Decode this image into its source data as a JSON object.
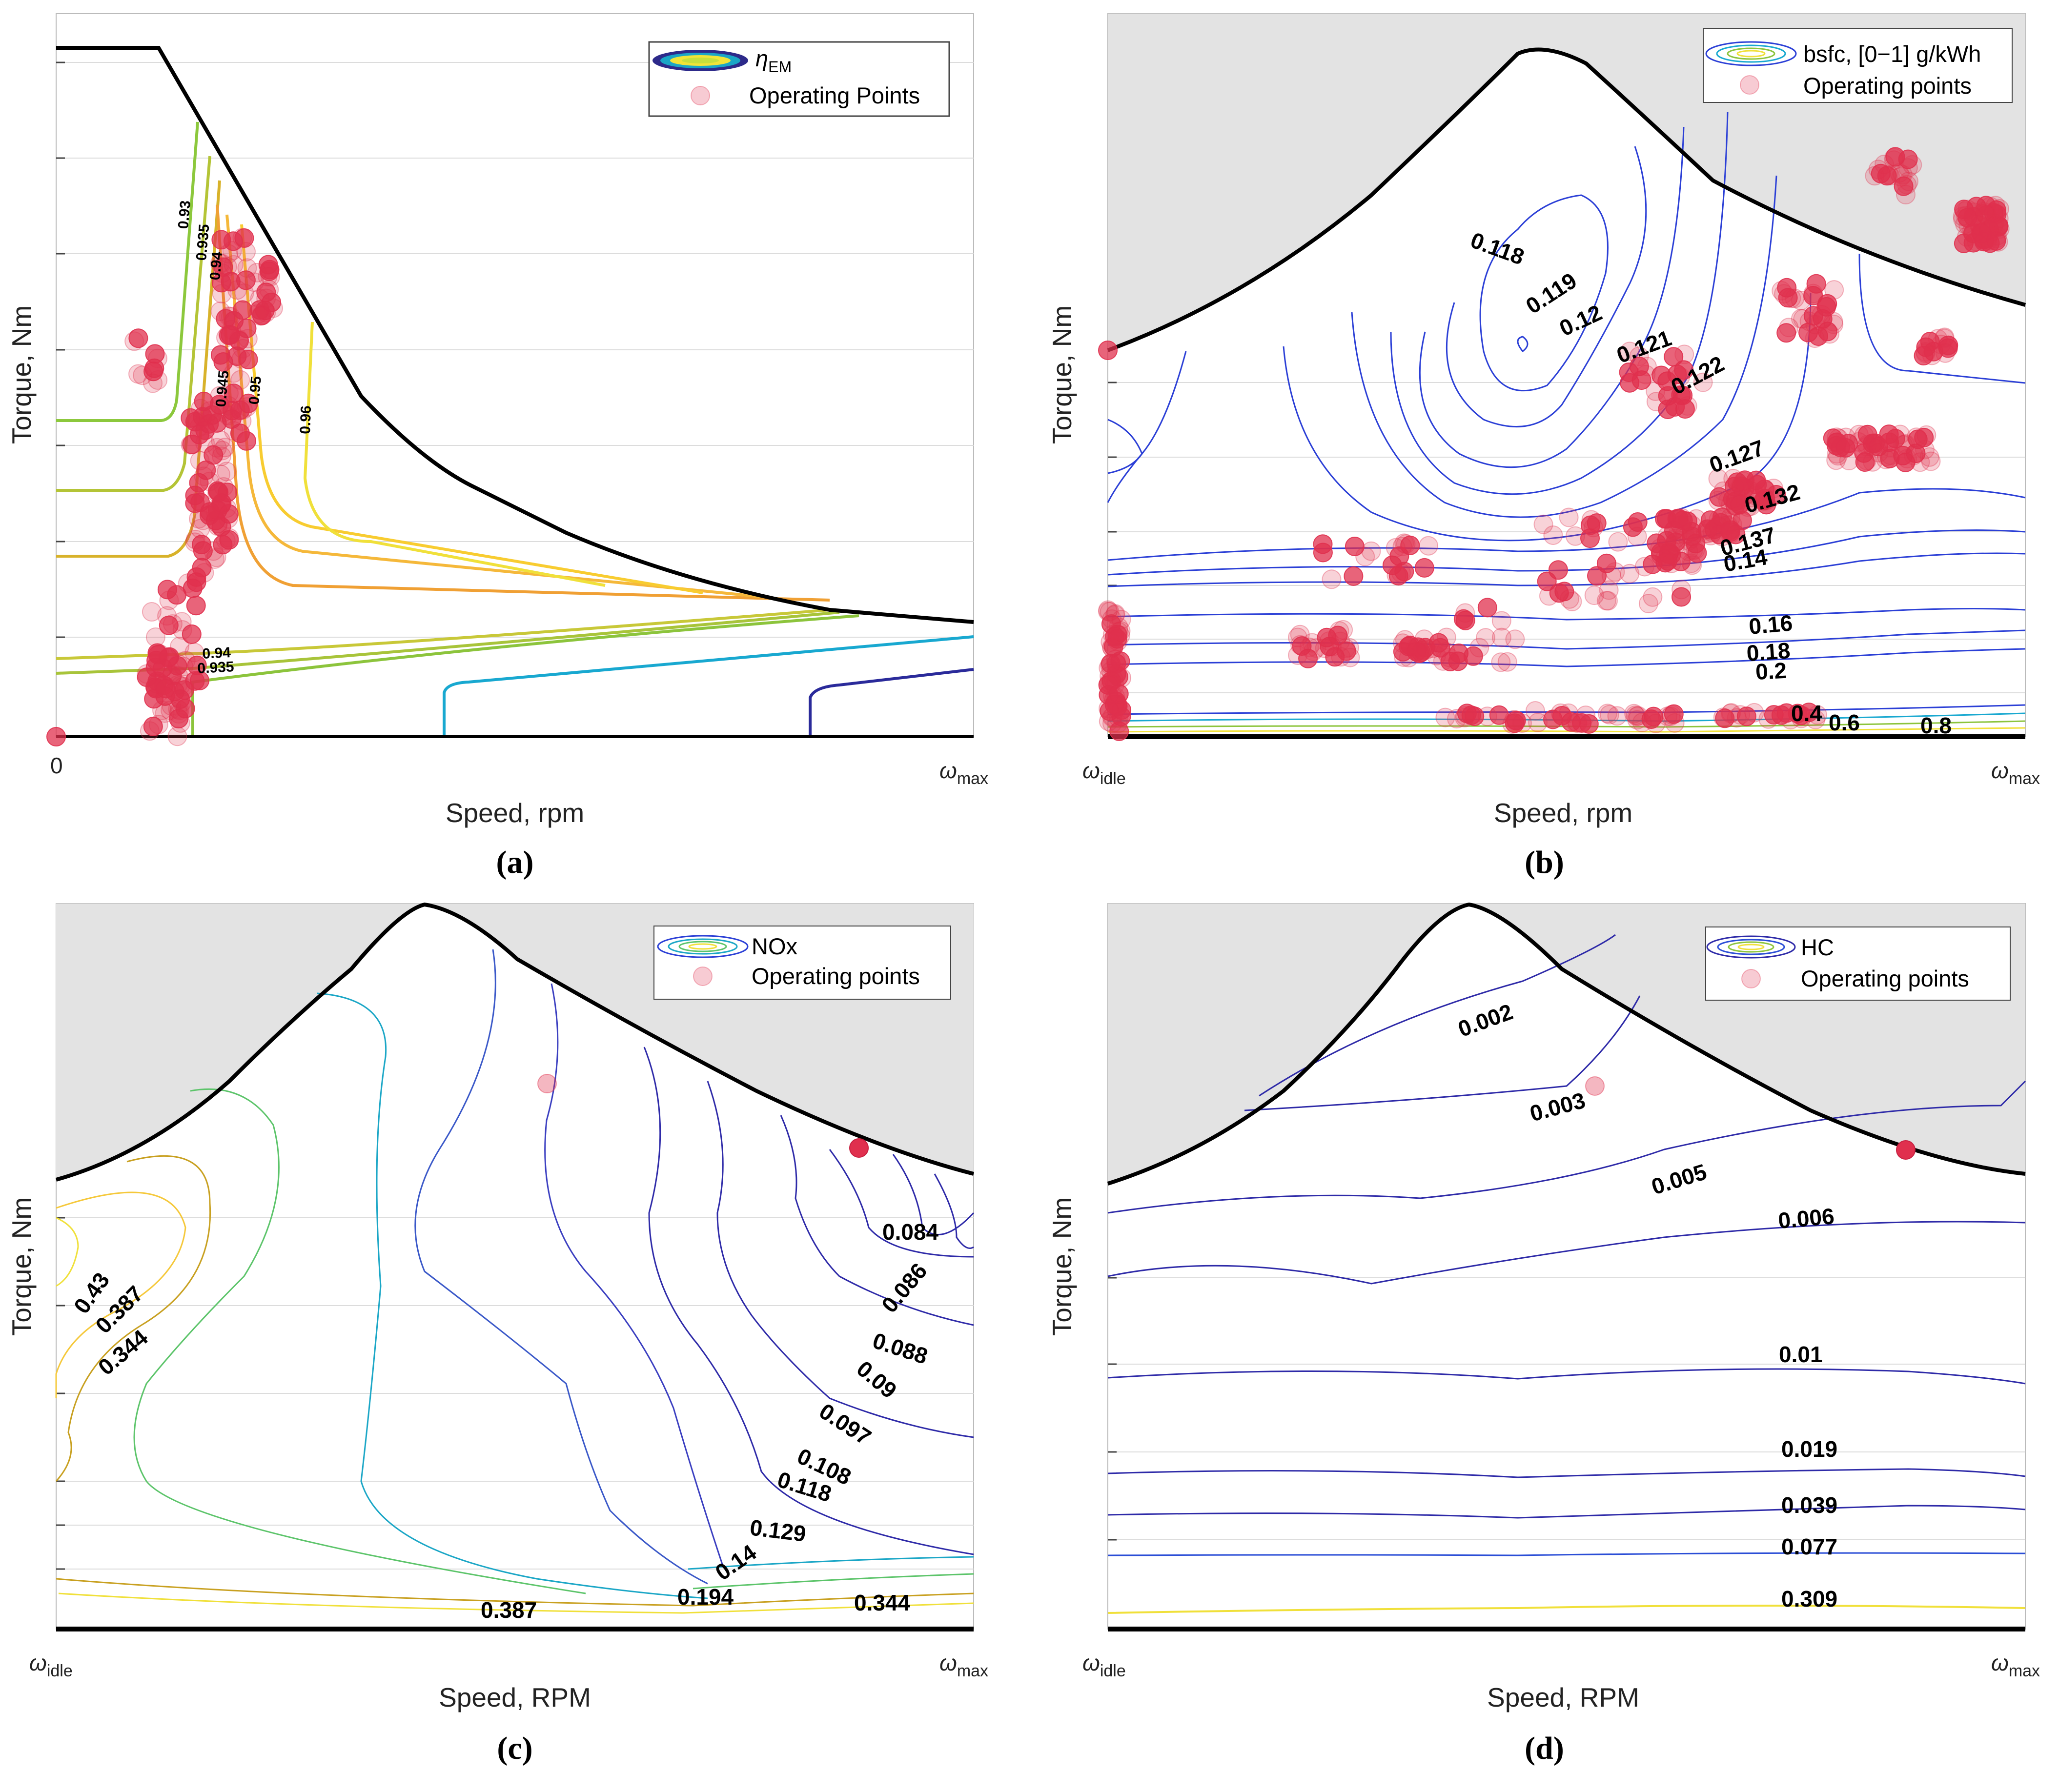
{
  "figure": {
    "captions": [
      "(a)",
      "(b)",
      "(c)",
      "(d)"
    ]
  },
  "colors": {
    "operating_point": "#e0304e",
    "infeasible_region": "#e3e3e3",
    "boundary": "#000000",
    "grid": "#dcdcdc"
  },
  "chart_data": [
    {
      "id": "a",
      "type": "contour",
      "caption": "(a)",
      "xlabel": "Speed, rpm",
      "ylabel": "Torque, Nm",
      "x_ticks": [
        {
          "label": "0",
          "sub": ""
        },
        {
          "label": "ω",
          "sub": "max"
        }
      ],
      "legend": [
        {
          "symbol": "contour",
          "label": "η",
          "sub": "EM"
        },
        {
          "symbol": "marker",
          "label": "Operating Points"
        }
      ],
      "legend_position": "top-right",
      "grid": true,
      "contour_labels": [
        "0.93",
        "0.935",
        "0.94",
        "0.945",
        "0.95",
        "0.96",
        "0.94",
        "0.935"
      ],
      "operating_points_note": "dense cluster at low speed, wide torque range"
    },
    {
      "id": "b",
      "type": "contour",
      "caption": "(b)",
      "xlabel": "Speed, rpm",
      "ylabel": "Torque, Nm",
      "x_ticks": [
        {
          "label": "ω",
          "sub": "idle"
        },
        {
          "label": "ω",
          "sub": "max"
        }
      ],
      "legend": [
        {
          "symbol": "contour",
          "label": "bsfc, [0−1] g/kWh"
        },
        {
          "symbol": "marker",
          "label": "Operating points"
        }
      ],
      "legend_position": "top-right",
      "grid": true,
      "contour_labels": [
        "0.118",
        "0.119",
        "0.12",
        "0.121",
        "0.122",
        "0.127",
        "0.132",
        "0.137",
        "0.14",
        "0.16",
        "0.18",
        "0.2",
        "0.4",
        "0.6",
        "0.8"
      ]
    },
    {
      "id": "c",
      "type": "contour",
      "caption": "(c)",
      "xlabel": "Speed, RPM",
      "ylabel": "Torque, Nm",
      "x_ticks": [
        {
          "label": "ω",
          "sub": "idle"
        },
        {
          "label": "ω",
          "sub": "max"
        }
      ],
      "legend": [
        {
          "symbol": "contour",
          "label": "NOx"
        },
        {
          "symbol": "marker",
          "label": "Operating points"
        }
      ],
      "legend_position": "top-right",
      "grid": true,
      "contour_labels": [
        "0.43",
        "0.387",
        "0.344",
        "0.084",
        "0.086",
        "0.088",
        "0.09",
        "0.097",
        "0.108",
        "0.118",
        "0.129",
        "0.14",
        "0.194",
        "0.387",
        "0.344"
      ]
    },
    {
      "id": "d",
      "type": "contour",
      "caption": "(d)",
      "xlabel": "Speed, RPM",
      "ylabel": "Torque, Nm",
      "x_ticks": [
        {
          "label": "ω",
          "sub": "idle"
        },
        {
          "label": "ω",
          "sub": "max"
        }
      ],
      "legend": [
        {
          "symbol": "contour",
          "label": "HC"
        },
        {
          "symbol": "marker",
          "label": "Operating points"
        }
      ],
      "legend_position": "top-right",
      "grid": true,
      "contour_labels": [
        "0.002",
        "0.003",
        "0.005",
        "0.006",
        "0.01",
        "0.019",
        "0.039",
        "0.077",
        "0.309"
      ]
    }
  ]
}
